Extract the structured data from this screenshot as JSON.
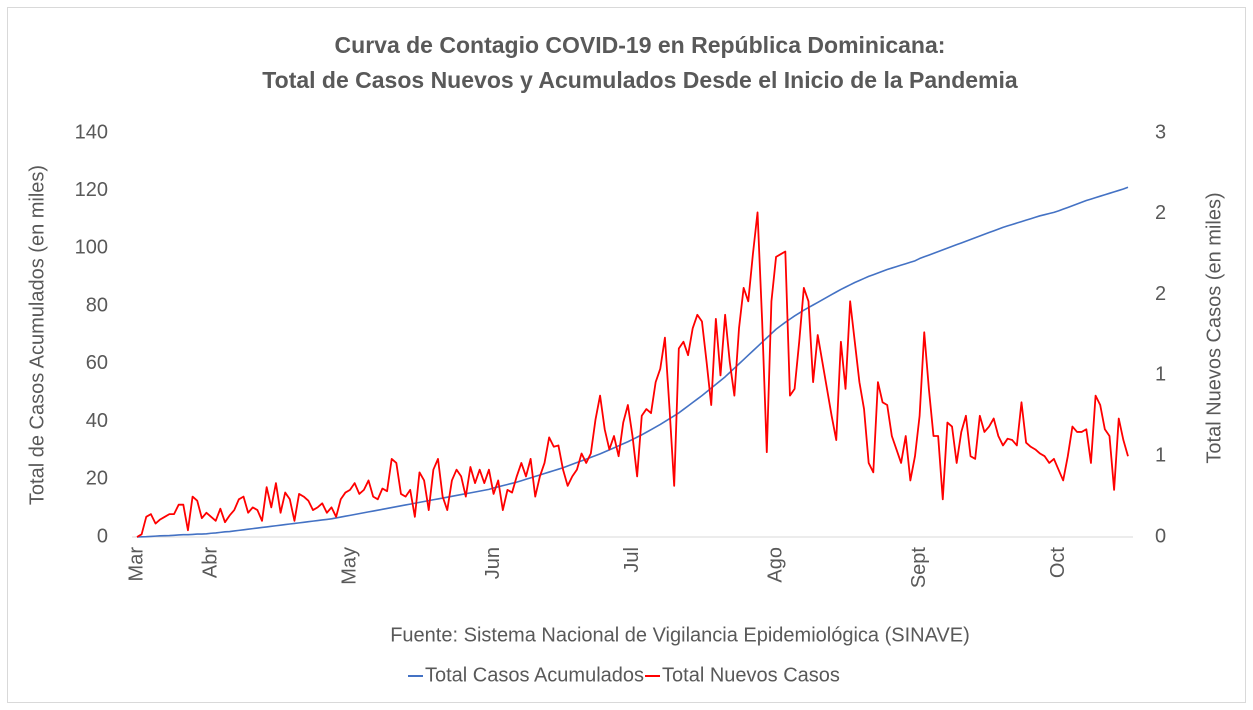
{
  "chart_data": {
    "type": "line",
    "title": [
      "Curva de Contagio COVID-19 en República Dominicana:",
      "Total de Casos Nuevos y Acumulados Desde el Inicio de la Pandemia"
    ],
    "y_label": "Total de Casos Acumulados (en miles)",
    "y2_label": "Total Nuevos Casos (en miles)",
    "note": "Fuente: Sistema Nacional de Vigilancia Epidemiológica (SINAVE)",
    "categories": [
      "Mar",
      null,
      null,
      null,
      null,
      null,
      null,
      null,
      null,
      null,
      null,
      null,
      null,
      null,
      null,
      null,
      "Abr",
      null,
      null,
      null,
      null,
      null,
      null,
      null,
      null,
      null,
      null,
      null,
      null,
      null,
      null,
      null,
      null,
      null,
      null,
      null,
      null,
      null,
      null,
      null,
      null,
      null,
      null,
      null,
      null,
      null,
      "May",
      null,
      null,
      null,
      null,
      null,
      null,
      null,
      null,
      null,
      null,
      null,
      null,
      null,
      null,
      null,
      null,
      null,
      null,
      null,
      null,
      null,
      null,
      null,
      null,
      null,
      null,
      null,
      null,
      null,
      null,
      "Jun",
      null,
      null,
      null,
      null,
      null,
      null,
      null,
      null,
      null,
      null,
      null,
      null,
      null,
      null,
      null,
      null,
      null,
      null,
      null,
      null,
      null,
      null,
      null,
      null,
      null,
      null,
      null,
      null,
      null,
      "Jul",
      null,
      null,
      null,
      null,
      null,
      null,
      null,
      null,
      null,
      null,
      null,
      null,
      null,
      null,
      null,
      null,
      null,
      null,
      null,
      null,
      null,
      null,
      null,
      null,
      null,
      null,
      null,
      null,
      null,
      null,
      "Ago",
      null,
      null,
      null,
      null,
      null,
      null,
      null,
      null,
      null,
      null,
      null,
      null,
      null,
      null,
      null,
      null,
      null,
      null,
      null,
      null,
      null,
      null,
      null,
      null,
      null,
      null,
      null,
      null,
      null,
      null,
      "Sept",
      null,
      null,
      null,
      null,
      null,
      null,
      null,
      null,
      null,
      null,
      null,
      null,
      null,
      null,
      null,
      null,
      null,
      null,
      null,
      null,
      null,
      null,
      null,
      null,
      null,
      null,
      null,
      null,
      null,
      "Oct",
      null,
      null,
      null,
      null,
      null,
      null,
      null,
      null,
      null,
      null,
      null,
      null,
      null,
      null,
      null
    ],
    "series": [
      {
        "name": "Total Casos Acumulados",
        "color": "#4472c4",
        "axis": "y",
        "values": [
          0,
          0.05,
          0.1,
          0.2,
          0.3,
          0.4,
          0.45,
          0.5,
          0.6,
          0.7,
          0.8,
          0.8,
          0.9,
          1.0,
          1.0,
          1.1,
          1.3,
          1.4,
          1.6,
          1.8,
          1.9,
          2.1,
          2.3,
          2.5,
          2.7,
          2.9,
          3.1,
          3.3,
          3.5,
          3.7,
          3.9,
          4.1,
          4.3,
          4.5,
          4.7,
          4.9,
          5.1,
          5.3,
          5.5,
          5.7,
          5.9,
          6.1,
          6.3,
          6.6,
          6.9,
          7.2,
          7.5,
          7.8,
          8.1,
          8.4,
          8.7,
          9.0,
          9.3,
          9.6,
          9.9,
          10.2,
          10.5,
          10.8,
          11.1,
          11.4,
          11.7,
          12.0,
          12.3,
          12.6,
          12.9,
          13.2,
          13.5,
          13.8,
          14.1,
          14.4,
          14.7,
          15.0,
          15.3,
          15.6,
          15.9,
          16.2,
          16.5,
          17.0,
          17.4,
          17.8,
          18.2,
          18.6,
          19.0,
          19.5,
          20.0,
          20.5,
          21.0,
          21.5,
          22.0,
          22.5,
          23.0,
          23.5,
          24.0,
          24.6,
          25.2,
          25.8,
          26.4,
          27.0,
          27.6,
          28.2,
          28.8,
          29.5,
          30.2,
          30.9,
          31.6,
          32.3,
          33.0,
          33.8,
          34.6,
          35.4,
          36.3,
          37.2,
          38.1,
          39.0,
          40.0,
          41.0,
          42.0,
          43.0,
          44.2,
          45.4,
          46.6,
          47.8,
          49.0,
          50.3,
          51.6,
          52.9,
          54.2,
          55.5,
          57.0,
          58.5,
          60.0,
          61.5,
          63.0,
          64.5,
          66.0,
          67.5,
          69.0,
          70.5,
          72.0,
          73.2,
          74.4,
          75.5,
          76.6,
          77.6,
          78.6,
          79.5,
          80.4,
          81.3,
          82.2,
          83.1,
          84.0,
          84.9,
          85.8,
          86.6,
          87.4,
          88.2,
          88.9,
          89.6,
          90.3,
          90.9,
          91.5,
          92.1,
          92.7,
          93.2,
          93.7,
          94.2,
          94.7,
          95.2,
          95.7,
          96.5,
          97.1,
          97.7,
          98.3,
          98.9,
          99.5,
          100.1,
          100.7,
          101.3,
          101.9,
          102.5,
          103.1,
          103.7,
          104.3,
          104.9,
          105.5,
          106.1,
          106.7,
          107.3,
          107.8,
          108.3,
          108.8,
          109.3,
          109.8,
          110.3,
          110.8,
          111.3,
          111.7,
          112.1,
          112.5,
          113.0,
          113.6,
          114.2,
          114.8,
          115.4,
          116.0,
          116.6,
          117.1,
          117.6,
          118.1,
          118.6,
          119.1,
          119.6,
          120.1,
          120.6,
          121.2
        ]
      },
      {
        "name": "Total Nuevos Casos",
        "color": "#ff0000",
        "axis": "y2",
        "values": [
          0,
          0.02,
          0.15,
          0.17,
          0.1,
          0.13,
          0.15,
          0.17,
          0.17,
          0.24,
          0.24,
          0.05,
          0.3,
          0.27,
          0.14,
          0.18,
          0.15,
          0.12,
          0.21,
          0.11,
          0.16,
          0.2,
          0.28,
          0.3,
          0.18,
          0.22,
          0.2,
          0.12,
          0.37,
          0.22,
          0.4,
          0.18,
          0.33,
          0.28,
          0.12,
          0.32,
          0.3,
          0.27,
          0.2,
          0.22,
          0.25,
          0.18,
          0.22,
          0.15,
          0.28,
          0.33,
          0.35,
          0.4,
          0.32,
          0.35,
          0.42,
          0.3,
          0.28,
          0.36,
          0.34,
          0.58,
          0.55,
          0.32,
          0.3,
          0.35,
          0.15,
          0.48,
          0.42,
          0.2,
          0.5,
          0.58,
          0.3,
          0.2,
          0.42,
          0.5,
          0.45,
          0.3,
          0.52,
          0.4,
          0.5,
          0.4,
          0.5,
          0.32,
          0.42,
          0.2,
          0.35,
          0.33,
          0.45,
          0.55,
          0.45,
          0.58,
          0.3,
          0.45,
          0.55,
          0.74,
          0.67,
          0.68,
          0.5,
          0.38,
          0.45,
          0.5,
          0.62,
          0.55,
          0.62,
          0.87,
          1.05,
          0.8,
          0.65,
          0.75,
          0.6,
          0.85,
          0.98,
          0.75,
          0.45,
          0.9,
          0.95,
          0.92,
          1.15,
          1.25,
          1.48,
          0.95,
          0.38,
          1.4,
          1.45,
          1.35,
          1.55,
          1.65,
          1.6,
          1.3,
          0.98,
          1.62,
          1.2,
          1.65,
          1.3,
          1.05,
          1.55,
          1.85,
          1.75,
          2.1,
          2.41,
          1.6,
          0.63,
          1.75,
          2.08,
          2.1,
          2.12,
          1.05,
          1.1,
          1.45,
          1.85,
          1.75,
          1.15,
          1.5,
          1.3,
          1.1,
          0.9,
          0.72,
          1.45,
          1.1,
          1.75,
          1.45,
          1.15,
          0.95,
          0.55,
          0.48,
          1.15,
          1.0,
          0.98,
          0.75,
          0.65,
          0.55,
          0.75,
          0.42,
          0.6,
          0.9,
          1.52,
          1.1,
          0.75,
          0.75,
          0.28,
          0.85,
          0.82,
          0.55,
          0.78,
          0.9,
          0.6,
          0.58,
          0.9,
          0.78,
          0.82,
          0.88,
          0.75,
          0.68,
          0.73,
          0.72,
          0.68,
          1.0,
          0.7,
          0.67,
          0.65,
          0.62,
          0.6,
          0.55,
          0.58,
          0.5,
          0.42,
          0.6,
          0.82,
          0.78,
          0.78,
          0.8,
          0.55,
          1.05,
          0.98,
          0.8,
          0.75,
          0.35,
          0.88,
          0.72,
          0.6
        ]
      }
    ],
    "ylim": [
      0,
      140
    ],
    "yticks": [
      0,
      20,
      40,
      60,
      80,
      100,
      120,
      140
    ],
    "y2lim": [
      0,
      3
    ],
    "y2ticks": [
      0,
      {
        "value": 0.6,
        "label": "1"
      },
      {
        "value": 1.2,
        "label": "1"
      },
      {
        "value": 1.8,
        "label": "2"
      },
      {
        "value": 2.4,
        "label": "2"
      },
      3
    ],
    "grid": false,
    "legend": "bottom"
  }
}
